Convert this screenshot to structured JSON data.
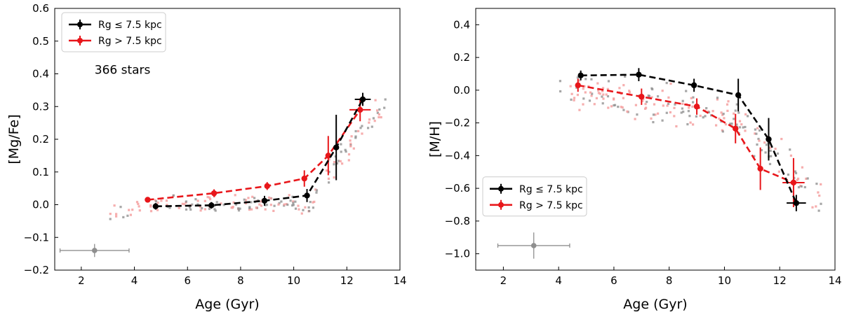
{
  "chart_data": [
    {
      "type": "scatter",
      "id": "mgfe",
      "xlabel": "Age (Gyr)",
      "ylabel": "[Mg/Fe]",
      "xlim": [
        1,
        14
      ],
      "ylim": [
        -0.2,
        0.6
      ],
      "xticks": [
        2,
        4,
        6,
        8,
        10,
        12,
        14
      ],
      "xtick_labels": [
        "2",
        "4",
        "6",
        "8",
        "10",
        "12",
        "14"
      ],
      "yticks": [
        -0.2,
        -0.1,
        0.0,
        0.1,
        0.2,
        0.3,
        0.4,
        0.5,
        0.6
      ],
      "ytick_labels": [
        "−0.2",
        "−0.1",
        "0.0",
        "0.1",
        "0.2",
        "0.3",
        "0.4",
        "0.5",
        "0.6"
      ],
      "annotation": "366 stars",
      "legend_position": "upper-left",
      "legend": [
        "Rg ≤ 7.5 kpc",
        "Rg > 7.5 kpc"
      ],
      "series": [
        {
          "name": "Rg ≤ 7.5 kpc",
          "color": "#000000",
          "x": [
            4.8,
            6.9,
            8.9,
            10.5,
            11.6,
            12.6
          ],
          "y": [
            -0.005,
            -0.002,
            0.012,
            0.028,
            0.175,
            0.322
          ],
          "yerr": [
            0.01,
            0.01,
            0.015,
            0.02,
            0.1,
            0.02
          ],
          "xerr_last": 0.3
        },
        {
          "name": "Rg > 7.5 kpc",
          "color": "#e8161a",
          "x": [
            4.5,
            7.0,
            9.0,
            10.4,
            11.3,
            12.5
          ],
          "y": [
            0.015,
            0.035,
            0.057,
            0.08,
            0.15,
            0.29
          ],
          "yerr": [
            0.008,
            0.012,
            0.012,
            0.025,
            0.06,
            0.035
          ],
          "xerr_last": 0.4
        }
      ],
      "typical_error": {
        "x": 2.5,
        "y": -0.14,
        "xerr": 1.3,
        "yerr": 0.02
      }
    },
    {
      "type": "scatter",
      "id": "mh",
      "xlabel": "Age (Gyr)",
      "ylabel": "[M/H]",
      "xlim": [
        1,
        14
      ],
      "ylim": [
        -1.1,
        0.5
      ],
      "xticks": [
        2,
        4,
        6,
        8,
        10,
        12,
        14
      ],
      "xtick_labels": [
        "2",
        "4",
        "6",
        "8",
        "10",
        "12",
        "14"
      ],
      "yticks": [
        -1.0,
        -0.8,
        -0.6,
        -0.4,
        -0.2,
        0.0,
        0.2,
        0.4
      ],
      "ytick_labels": [
        "−1.0",
        "−0.8",
        "−0.6",
        "−0.4",
        "−0.2",
        "0.0",
        "0.2",
        "0.4"
      ],
      "legend_position": "center-left",
      "legend": [
        "Rg ≤ 7.5 kpc",
        "Rg > 7.5 kpc"
      ],
      "series": [
        {
          "name": "Rg ≤ 7.5 kpc",
          "color": "#000000",
          "x": [
            4.8,
            6.9,
            8.9,
            10.5,
            11.6,
            12.6
          ],
          "y": [
            0.09,
            0.095,
            0.03,
            -0.03,
            -0.3,
            -0.69
          ],
          "yerr": [
            0.03,
            0.04,
            0.04,
            0.1,
            0.13,
            0.05
          ],
          "xerr_last": 0.35
        },
        {
          "name": "Rg > 7.5 kpc",
          "color": "#e8161a",
          "x": [
            4.7,
            7.0,
            9.0,
            10.4,
            11.3,
            12.5
          ],
          "y": [
            0.03,
            -0.04,
            -0.1,
            -0.235,
            -0.48,
            -0.565
          ],
          "yerr": [
            0.04,
            0.05,
            0.05,
            0.09,
            0.13,
            0.15
          ],
          "xerr_last": 0.4
        }
      ],
      "typical_error": {
        "x": 3.1,
        "y": -0.95,
        "xerr": 1.3,
        "yerr": 0.08
      }
    }
  ],
  "colors": {
    "inner": "#000000",
    "outer": "#e8161a",
    "inner_stars": "#8a8a8a",
    "outer_stars": "#f4a0a0",
    "error_bar": "#8f8f8f"
  }
}
